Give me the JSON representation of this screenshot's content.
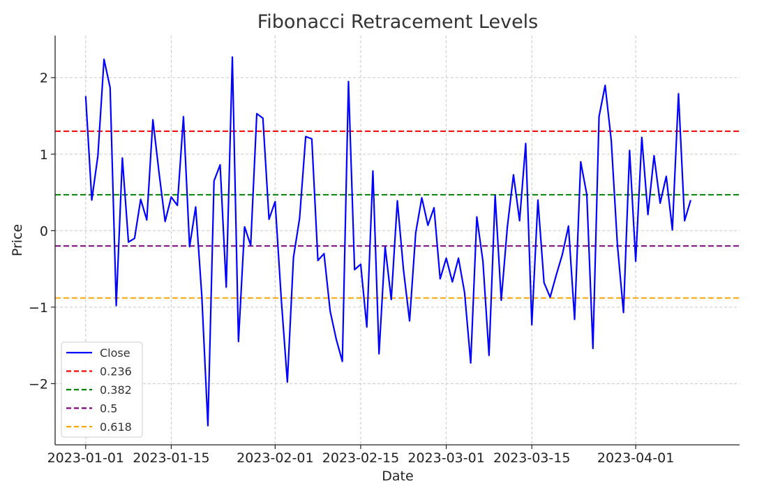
{
  "chart_data": {
    "type": "line",
    "title": "Fibonacci Retracement Levels",
    "xlabel": "Date",
    "ylabel": "Price",
    "x_start": "2023-01-01",
    "xlim": [
      "2022-12-27",
      "2023-04-18"
    ],
    "ylim": [
      -2.8,
      2.55
    ],
    "x_ticks": [
      "2023-01-01",
      "2023-01-15",
      "2023-02-01",
      "2023-02-15",
      "2023-03-01",
      "2023-03-15",
      "2023-04-01"
    ],
    "y_ticks": [
      -2,
      -1,
      0,
      1,
      2
    ],
    "y_tick_labels": [
      "−2",
      "−1",
      "0",
      "1",
      "2"
    ],
    "grid": true,
    "legend_position": "lower-left",
    "series": [
      {
        "name": "Close",
        "color": "#0000ff",
        "style": "solid",
        "values": [
          1.76,
          0.4,
          0.98,
          2.24,
          1.87,
          -0.98,
          0.95,
          -0.15,
          -0.1,
          0.41,
          0.14,
          1.45,
          0.76,
          0.12,
          0.44,
          0.33,
          1.49,
          -0.21,
          0.31,
          -0.85,
          -2.55,
          0.65,
          0.86,
          -0.74,
          2.27,
          -1.45,
          0.05,
          -0.19,
          1.53,
          1.47,
          0.15,
          0.38,
          -0.89,
          -1.98,
          -0.35,
          0.16,
          1.23,
          1.2,
          -0.39,
          -0.3,
          -1.05,
          -1.42,
          -1.71,
          1.95,
          -0.51,
          -0.44,
          -1.26,
          0.78,
          -1.61,
          -0.21,
          -0.9,
          0.39,
          -0.51,
          -1.18,
          -0.03,
          0.43,
          0.07,
          0.3,
          -0.63,
          -0.36,
          -0.67,
          -0.36,
          -0.81,
          -1.73,
          0.18,
          -0.4,
          -1.63,
          0.46,
          -0.91,
          0.05,
          0.73,
          0.13,
          1.14,
          -1.23,
          0.4,
          -0.68,
          -0.87,
          -0.58,
          -0.31,
          0.06,
          -1.16,
          0.9,
          0.47,
          -1.54,
          1.49,
          1.9,
          1.18,
          -0.18,
          -1.07,
          1.05,
          -0.4,
          1.22,
          0.21,
          0.98,
          0.36,
          0.71,
          0.01,
          1.79,
          0.13,
          0.4
        ]
      },
      {
        "name": "0.236",
        "color": "#ff0000",
        "style": "dashed",
        "value": 1.3
      },
      {
        "name": "0.382",
        "color": "#008000",
        "style": "dashed",
        "value": 0.47
      },
      {
        "name": "0.5",
        "color": "#800080",
        "style": "dashed",
        "value": -0.2
      },
      {
        "name": "0.618",
        "color": "#ffa500",
        "style": "dashed",
        "value": -0.88
      }
    ]
  }
}
